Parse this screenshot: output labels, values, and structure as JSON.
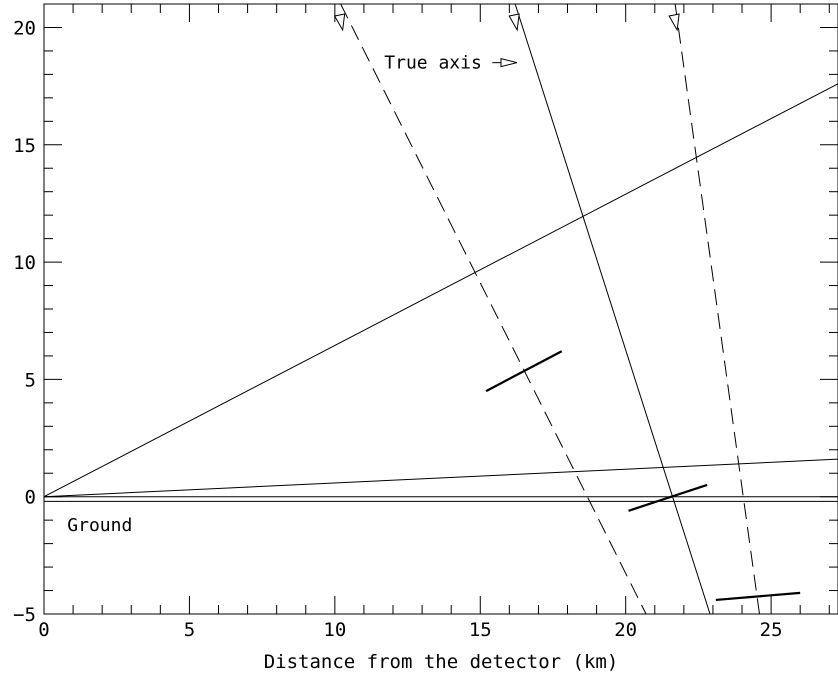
{
  "chart_data": {
    "type": "line",
    "xlabel": "Distance from the detector (km)",
    "ylabel": "",
    "xlim": [
      0,
      27.3
    ],
    "ylim": [
      -5,
      21
    ],
    "x_ticks": [
      0,
      5,
      10,
      15,
      20,
      25
    ],
    "y_ticks": [
      -5,
      0,
      5,
      10,
      15,
      20
    ],
    "x_tick_labels": [
      "0",
      "5",
      "10",
      "15",
      "20",
      "25"
    ],
    "y_tick_labels": [
      "−5",
      "0",
      "5",
      "10",
      "15",
      "20"
    ],
    "annotations": [
      {
        "text": "True axis",
        "x": 11.7,
        "y": 18.5,
        "arrow_to": [
          16.4,
          18.5
        ]
      },
      {
        "text": "Ground",
        "x": 0.8,
        "y": -1.2
      }
    ],
    "series": [
      {
        "style": "solid",
        "x": [
          0,
          27.3
        ],
        "y": [
          0,
          17.6
        ]
      },
      {
        "style": "solid",
        "x": [
          0,
          27.3
        ],
        "y": [
          0,
          1.6
        ]
      },
      {
        "style": "solid",
        "x": [
          0,
          27.3
        ],
        "y": [
          0,
          0
        ]
      },
      {
        "style": "solid",
        "x": [
          0,
          27.3
        ],
        "y": [
          -0.2,
          -0.2
        ]
      },
      {
        "style": "solid",
        "x": [
          16.2,
          22.9
        ],
        "y": [
          21,
          -5
        ]
      },
      {
        "style": "dashed",
        "x": [
          10.2,
          20.7
        ],
        "y": [
          21,
          -5
        ]
      },
      {
        "style": "dashed",
        "x": [
          21.7,
          24.6
        ],
        "y": [
          21,
          -5
        ]
      },
      {
        "style": "thick",
        "x": [
          15.2,
          17.8
        ],
        "y": [
          4.5,
          6.2
        ]
      },
      {
        "style": "thick",
        "x": [
          20.1,
          22.8
        ],
        "y": [
          -0.6,
          0.5
        ]
      },
      {
        "style": "thick",
        "x": [
          23.1,
          26.0
        ],
        "y": [
          -4.4,
          -4.1
        ]
      }
    ],
    "arrow_markers": [
      {
        "x": 10.2,
        "y": 21
      },
      {
        "x": 16.2,
        "y": 21
      },
      {
        "x": 21.7,
        "y": 21
      }
    ]
  }
}
